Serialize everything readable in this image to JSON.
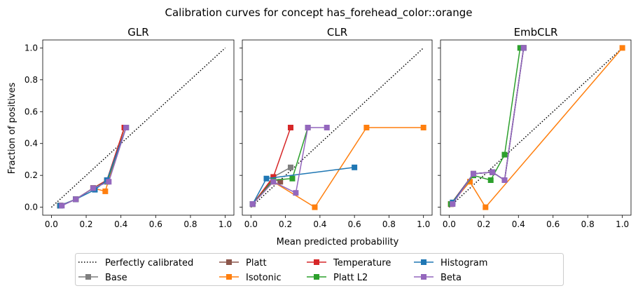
{
  "chart_data": {
    "type": "line",
    "title": "Calibration curves for concept has_forehead_color::orange",
    "xlabel": "Mean predicted probability",
    "ylabel": "Fraction of positives",
    "xlim": [
      -0.05,
      1.05
    ],
    "ylim": [
      -0.05,
      1.05
    ],
    "xticks": [
      "0.0",
      "0.2",
      "0.4",
      "0.6",
      "0.8",
      "1.0"
    ],
    "yticks": [
      "0.0",
      "0.2",
      "0.4",
      "0.6",
      "0.8",
      "1.0"
    ],
    "grid": false,
    "legend_position": "bottom",
    "legend_entries": [
      {
        "name": "Perfectly calibrated",
        "color": "#000000",
        "style": "dotted"
      },
      {
        "name": "Base",
        "color": "#7f7f7f",
        "style": "solid-square"
      },
      {
        "name": "Platt",
        "color": "#8c564b",
        "style": "solid-square"
      },
      {
        "name": "Isotonic",
        "color": "#ff7f0e",
        "style": "solid-square"
      },
      {
        "name": "Temperature",
        "color": "#d62728",
        "style": "solid-square"
      },
      {
        "name": "Platt L2",
        "color": "#2ca02c",
        "style": "solid-square"
      },
      {
        "name": "Histogram",
        "color": "#1f77b4",
        "style": "solid-square"
      },
      {
        "name": "Beta",
        "color": "#9467bd",
        "style": "solid-square"
      }
    ],
    "panels": [
      {
        "title": "GLR",
        "series": [
          {
            "key": "Base",
            "x": [
              0.05,
              0.14,
              0.24,
              0.32,
              0.42
            ],
            "y": [
              0.01,
              0.05,
              0.12,
              0.17,
              0.5
            ]
          },
          {
            "key": "Platt",
            "x": [
              0.05,
              0.14,
              0.24,
              0.32,
              0.42
            ],
            "y": [
              0.01,
              0.05,
              0.12,
              0.17,
              0.5
            ]
          },
          {
            "key": "Isotonic",
            "x": [
              0.05,
              0.14,
              0.24,
              0.31,
              0.42
            ],
            "y": [
              0.01,
              0.05,
              0.12,
              0.1,
              0.5
            ]
          },
          {
            "key": "Temperature",
            "x": [
              0.05,
              0.14,
              0.24,
              0.32,
              0.42
            ],
            "y": [
              0.01,
              0.05,
              0.12,
              0.17,
              0.5
            ]
          },
          {
            "key": "Platt L2",
            "x": [
              0.05,
              0.14,
              0.24,
              0.32,
              0.43
            ],
            "y": [
              0.01,
              0.05,
              0.12,
              0.16,
              0.5
            ]
          },
          {
            "key": "Histogram",
            "x": [
              0.05,
              0.14,
              0.25,
              0.32,
              0.43
            ],
            "y": [
              0.01,
              0.05,
              0.11,
              0.17,
              0.5
            ]
          },
          {
            "key": "Beta",
            "x": [
              0.06,
              0.14,
              0.24,
              0.33,
              0.43
            ],
            "y": [
              0.01,
              0.05,
              0.12,
              0.16,
              0.5
            ]
          }
        ]
      },
      {
        "title": "CLR",
        "series": [
          {
            "key": "Base",
            "x": [
              0.01,
              0.13,
              0.23
            ],
            "y": [
              0.02,
              0.19,
              0.25
            ]
          },
          {
            "key": "Platt",
            "x": [
              0.01,
              0.13,
              0.17
            ],
            "y": [
              0.02,
              0.18,
              0.16
            ]
          },
          {
            "key": "Isotonic",
            "x": [
              0.01,
              0.13,
              0.37,
              0.67,
              1.0
            ],
            "y": [
              0.02,
              0.16,
              0.0,
              0.5,
              0.5
            ]
          },
          {
            "key": "Temperature",
            "x": [
              0.01,
              0.13,
              0.23
            ],
            "y": [
              0.02,
              0.19,
              0.5
            ]
          },
          {
            "key": "Platt L2",
            "x": [
              0.01,
              0.13,
              0.24,
              0.33
            ],
            "y": [
              0.02,
              0.17,
              0.18,
              0.5
            ]
          },
          {
            "key": "Histogram",
            "x": [
              0.01,
              0.09,
              0.6
            ],
            "y": [
              0.02,
              0.18,
              0.25
            ]
          },
          {
            "key": "Beta",
            "x": [
              0.01,
              0.13,
              0.26,
              0.33,
              0.44
            ],
            "y": [
              0.02,
              0.16,
              0.09,
              0.5,
              0.5
            ]
          }
        ]
      },
      {
        "title": "EmbCLR",
        "series": [
          {
            "key": "Base",
            "x": [
              0.01,
              0.14,
              0.25,
              0.32,
              0.43
            ],
            "y": [
              0.02,
              0.21,
              0.22,
              0.17,
              1.0
            ]
          },
          {
            "key": "Platt",
            "x": [
              0.01,
              0.14,
              0.25,
              0.32,
              0.43
            ],
            "y": [
              0.02,
              0.21,
              0.22,
              0.17,
              1.0
            ]
          },
          {
            "key": "Isotonic",
            "x": [
              0.01,
              0.12,
              0.21,
              1.0
            ],
            "y": [
              0.02,
              0.16,
              0.0,
              1.0
            ]
          },
          {
            "key": "Temperature",
            "x": [
              0.01,
              0.14,
              0.25,
              0.32,
              0.43
            ],
            "y": [
              0.02,
              0.21,
              0.22,
              0.17,
              1.0
            ]
          },
          {
            "key": "Platt L2",
            "x": [
              0.01,
              0.14,
              0.24,
              0.32,
              0.41
            ],
            "y": [
              0.02,
              0.2,
              0.17,
              0.33,
              1.0
            ]
          },
          {
            "key": "Histogram",
            "x": [
              0.02,
              0.14,
              0.25,
              0.32,
              0.43
            ],
            "y": [
              0.03,
              0.21,
              0.22,
              0.17,
              1.0
            ]
          },
          {
            "key": "Beta",
            "x": [
              0.02,
              0.14,
              0.25,
              0.32,
              0.43
            ],
            "y": [
              0.02,
              0.21,
              0.22,
              0.17,
              1.0
            ]
          }
        ]
      }
    ]
  }
}
